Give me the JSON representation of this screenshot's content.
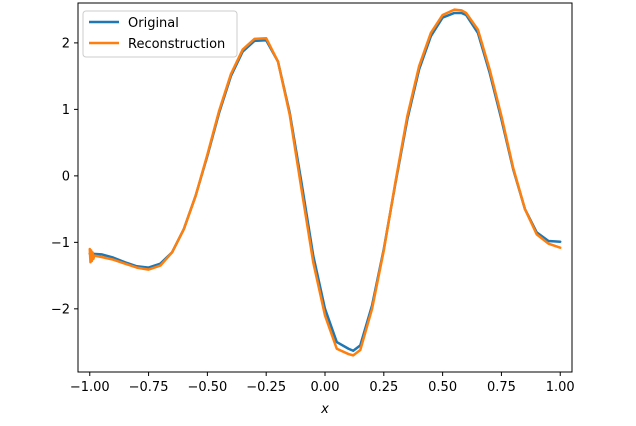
{
  "chart_data": {
    "type": "line",
    "title": "",
    "xlabel": "x",
    "ylabel": "",
    "xlim": [
      -1.05,
      1.05
    ],
    "ylim": [
      -2.95,
      2.6
    ],
    "xticks": [
      -1.0,
      -0.75,
      -0.5,
      -0.25,
      0.0,
      0.25,
      0.5,
      0.75,
      1.0
    ],
    "xtick_labels": [
      "−1.00",
      "−0.75",
      "−0.50",
      "−0.25",
      "0.00",
      "0.25",
      "0.50",
      "0.75",
      "1.00"
    ],
    "yticks": [
      -2,
      -1,
      0,
      1,
      2
    ],
    "ytick_labels": [
      "−2",
      "−1",
      "0",
      "1",
      "2"
    ],
    "grid": false,
    "legend": "top-left",
    "series": [
      {
        "name": "Original",
        "color": "#1f77b4",
        "x": [
          -1.0,
          -0.95,
          -0.9,
          -0.85,
          -0.8,
          -0.75,
          -0.7,
          -0.65,
          -0.6,
          -0.55,
          -0.5,
          -0.45,
          -0.4,
          -0.35,
          -0.3,
          -0.25,
          -0.2,
          -0.15,
          -0.1,
          -0.05,
          0.0,
          0.05,
          0.1,
          0.12,
          0.15,
          0.2,
          0.25,
          0.3,
          0.35,
          0.4,
          0.45,
          0.5,
          0.55,
          0.58,
          0.6,
          0.65,
          0.7,
          0.75,
          0.8,
          0.85,
          0.9,
          0.95,
          1.0
        ],
        "y": [
          -1.17,
          -1.18,
          -1.23,
          -1.3,
          -1.36,
          -1.38,
          -1.32,
          -1.15,
          -0.8,
          -0.3,
          0.3,
          0.95,
          1.5,
          1.87,
          2.03,
          2.04,
          1.72,
          0.95,
          -0.1,
          -1.2,
          -2.0,
          -2.5,
          -2.6,
          -2.63,
          -2.55,
          -1.95,
          -1.1,
          -0.1,
          0.85,
          1.6,
          2.1,
          2.38,
          2.45,
          2.45,
          2.42,
          2.15,
          1.55,
          0.85,
          0.1,
          -0.5,
          -0.85,
          -0.98,
          -0.99
        ]
      },
      {
        "name": "Reconstruction",
        "color": "#ff7f0e",
        "x": [
          -1.0,
          -0.997,
          -0.994,
          -0.991,
          -0.988,
          -0.985,
          -0.98,
          -0.95,
          -0.9,
          -0.85,
          -0.8,
          -0.75,
          -0.7,
          -0.65,
          -0.6,
          -0.55,
          -0.5,
          -0.45,
          -0.4,
          -0.35,
          -0.3,
          -0.25,
          -0.2,
          -0.15,
          -0.1,
          -0.05,
          0.0,
          0.05,
          0.1,
          0.12,
          0.15,
          0.2,
          0.25,
          0.3,
          0.35,
          0.4,
          0.45,
          0.5,
          0.55,
          0.58,
          0.6,
          0.65,
          0.7,
          0.75,
          0.8,
          0.85,
          0.9,
          0.95,
          1.0
        ],
        "y": [
          -1.1,
          -1.3,
          -1.12,
          -1.28,
          -1.15,
          -1.25,
          -1.2,
          -1.22,
          -1.26,
          -1.32,
          -1.38,
          -1.41,
          -1.35,
          -1.15,
          -0.8,
          -0.3,
          0.32,
          0.98,
          1.53,
          1.9,
          2.06,
          2.07,
          1.72,
          0.92,
          -0.2,
          -1.3,
          -2.1,
          -2.6,
          -2.68,
          -2.7,
          -2.62,
          -2.0,
          -1.12,
          -0.08,
          0.9,
          1.65,
          2.15,
          2.42,
          2.5,
          2.49,
          2.45,
          2.2,
          1.6,
          0.9,
          0.12,
          -0.5,
          -0.88,
          -1.02,
          -1.08
        ]
      }
    ]
  }
}
